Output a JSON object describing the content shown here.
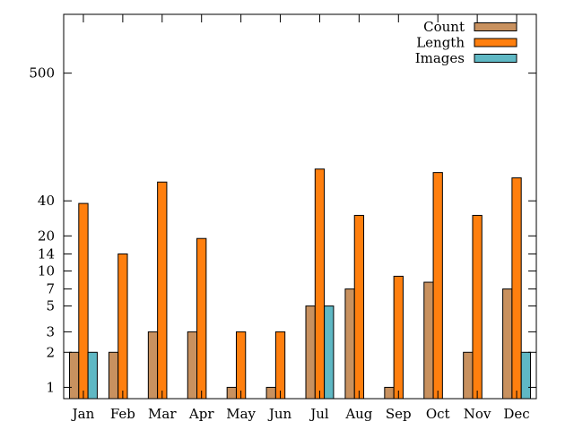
{
  "chart_data": {
    "type": "bar",
    "title": "",
    "xlabel": "",
    "ylabel": "",
    "scale": "log",
    "ylim": [
      0.8,
      1600
    ],
    "y_ticks": [
      1,
      2,
      3,
      5,
      7,
      10,
      14,
      20,
      40,
      500
    ],
    "y_tick_labels": [
      "1",
      "2",
      "3",
      "5",
      "7",
      "10",
      "14",
      "20",
      "40",
      "500"
    ],
    "categories": [
      "Jan",
      "Feb",
      "Mar",
      "Apr",
      "May",
      "Jun",
      "Jul",
      "Aug",
      "Sep",
      "Oct",
      "Nov",
      "Dec"
    ],
    "legend_position": "top-right",
    "grid": false,
    "series": [
      {
        "name": "Count",
        "color": "#c8915f",
        "values": [
          2,
          2,
          3,
          3,
          1,
          1,
          5,
          7,
          1,
          8,
          2,
          7
        ]
      },
      {
        "name": "Length",
        "color": "#ff7f0e",
        "values": [
          38,
          14,
          58,
          19,
          3,
          3,
          75,
          30,
          9,
          70,
          30,
          63
        ]
      },
      {
        "name": "Images",
        "color": "#5fb8c4",
        "values": [
          2,
          null,
          null,
          null,
          null,
          null,
          5,
          null,
          null,
          null,
          null,
          2
        ]
      }
    ]
  }
}
